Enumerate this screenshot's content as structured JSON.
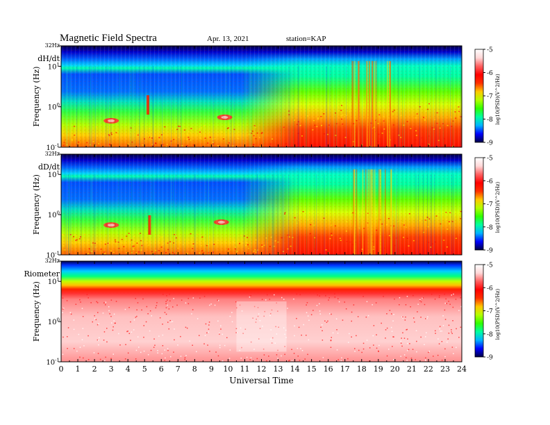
{
  "header": {
    "title": "Magnetic  Field  Spectra",
    "date": "Apr. 13, 2021",
    "station": "station=KAP"
  },
  "colors": {
    "scale": [
      "#000044",
      "#0000ff",
      "#00b4ff",
      "#00ffa0",
      "#30ff00",
      "#b4ff00",
      "#ffc800",
      "#ff3000",
      "#ff0000",
      "#ff6060",
      "#ffd8d8",
      "#ffffff"
    ]
  },
  "chart_data": [
    {
      "type": "heatmap",
      "panel_label": "dH/dt",
      "ylabel": "Frequency  (Hz)",
      "xlabel": "",
      "y_scale": "log",
      "y_ticks": [
        {
          "value": 32,
          "label": "32Hz"
        },
        {
          "value": 10,
          "base": "10",
          "exp": "1"
        },
        {
          "value": 1,
          "base": "10",
          "exp": "0"
        },
        {
          "value": 0.1,
          "base": "10",
          "exp": "-1"
        }
      ],
      "xlim": [
        0,
        24
      ],
      "ylim": [
        0.1,
        32
      ],
      "colorbar": {
        "label": "log10(PSD)(V^2/Hz)",
        "range": [
          -9,
          -5
        ],
        "ticks": [
          "-5",
          "-6",
          "-7",
          "-8",
          "-9"
        ]
      },
      "intensity_profile": "quiet background until ~13 UT, broadband power enhancement after 13 UT, strong vertical bursts near 18 UT",
      "features": [
        {
          "ut": 3.0,
          "freq_hz": 0.45,
          "kind": "blob"
        },
        {
          "ut": 5.2,
          "freq_hz": 1.2,
          "kind": "column"
        },
        {
          "ut": 9.8,
          "freq_hz": 0.55,
          "kind": "blob"
        },
        {
          "ut": 18.2,
          "freq_hz": 2.0,
          "kind": "burst"
        }
      ]
    },
    {
      "type": "heatmap",
      "panel_label": "dD/dt",
      "ylabel": "Frequency  (Hz)",
      "xlabel": "",
      "y_scale": "log",
      "y_ticks": [
        {
          "value": 32,
          "label": "32Hz"
        },
        {
          "value": 10,
          "base": "10",
          "exp": "1"
        },
        {
          "value": 1,
          "base": "10",
          "exp": "0"
        },
        {
          "value": 0.1,
          "base": "10",
          "exp": "-1"
        }
      ],
      "xlim": [
        0,
        24
      ],
      "ylim": [
        0.1,
        32
      ],
      "colorbar": {
        "label": "log10(PSD)(V^2/Hz)",
        "range": [
          -9,
          -5
        ],
        "ticks": [
          "-5",
          "-6",
          "-7",
          "-8",
          "-9"
        ]
      },
      "intensity_profile": "similar to dH/dt with stronger low-frequency power after 14 UT",
      "features": [
        {
          "ut": 3.0,
          "freq_hz": 0.55,
          "kind": "blob"
        },
        {
          "ut": 5.3,
          "freq_hz": 0.6,
          "kind": "column"
        },
        {
          "ut": 9.6,
          "freq_hz": 0.65,
          "kind": "blob"
        },
        {
          "ut": 18.2,
          "freq_hz": 2.0,
          "kind": "burst"
        }
      ]
    },
    {
      "type": "heatmap",
      "panel_label": "Riometer",
      "ylabel": "Frequency  (Hz)",
      "xlabel": "Universal Time",
      "y_scale": "log",
      "y_ticks": [
        {
          "value": 32,
          "label": "32Hz"
        },
        {
          "value": 10,
          "base": "10",
          "exp": "1"
        },
        {
          "value": 1,
          "base": "10",
          "exp": "0"
        },
        {
          "value": 0.1,
          "base": "10",
          "exp": "-1"
        }
      ],
      "xlim": [
        0,
        24
      ],
      "ylim": [
        0.1,
        32
      ],
      "x_ticks": [
        "0",
        "1",
        "2",
        "3",
        "4",
        "5",
        "6",
        "7",
        "8",
        "9",
        "10",
        "11",
        "12",
        "13",
        "14",
        "15",
        "16",
        "17",
        "18",
        "19",
        "20",
        "21",
        "22",
        "23",
        "24"
      ],
      "colorbar": {
        "label": "log10(PSD)(V^2/Hz)",
        "range": [
          -9,
          -5
        ],
        "ticks": [
          "-5",
          "-6",
          "-7",
          "-8",
          "-9"
        ]
      },
      "intensity_profile": "high power (pink/white) below ~6 Hz throughout the day, red band near 10 Hz, cyan/blue above 20 Hz",
      "features": []
    }
  ]
}
